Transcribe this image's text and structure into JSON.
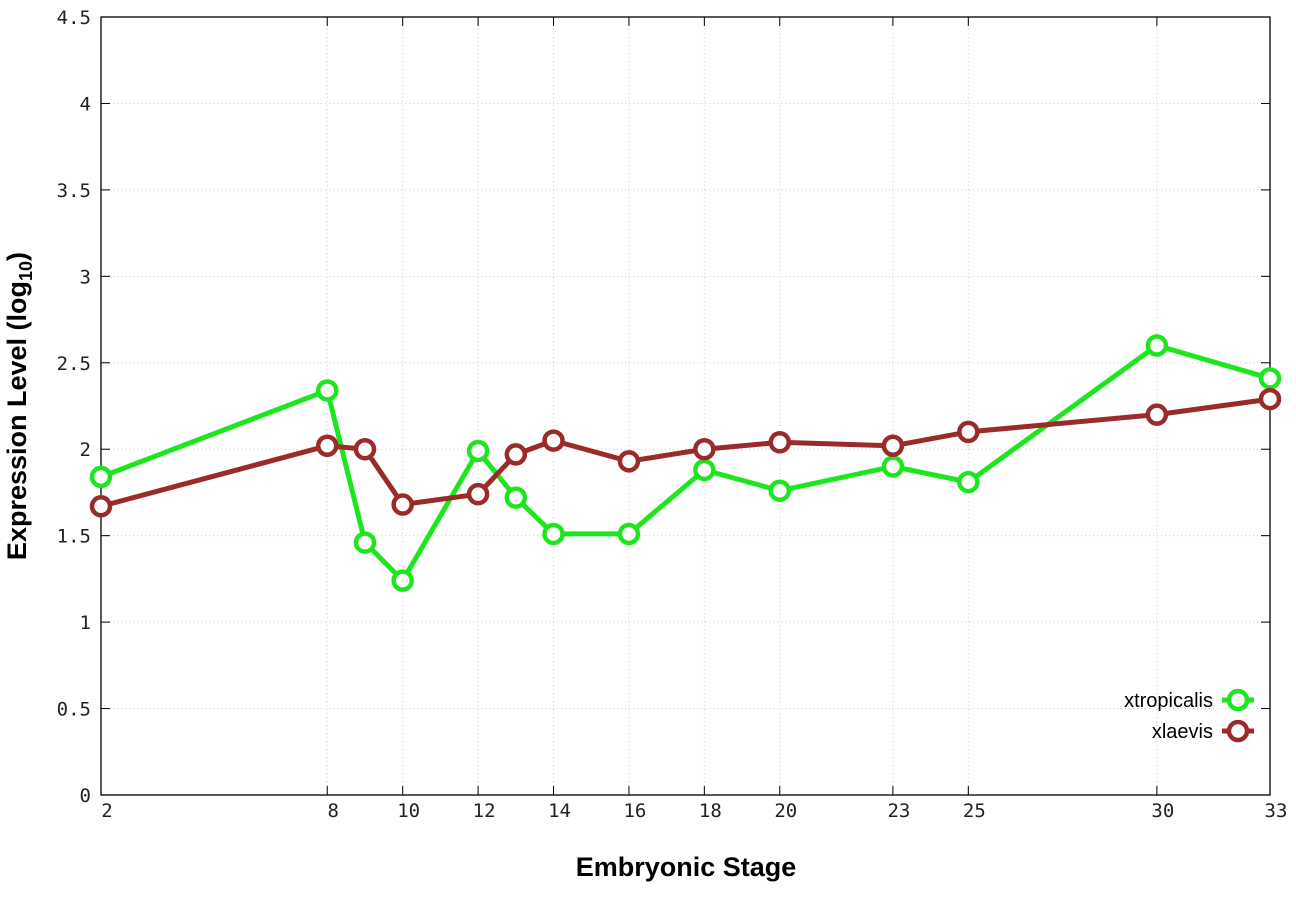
{
  "chart_data": {
    "type": "line",
    "xlabel": "Embryonic Stage",
    "ylabel_main": "Expression Level (log",
    "ylabel_sub": "10",
    "ylabel_close": ")",
    "ylim": [
      0,
      4.5
    ],
    "y_ticks": [
      "0",
      "0.5",
      "1",
      "1.5",
      "2",
      "2.5",
      "3",
      "3.5",
      "4",
      "4.5"
    ],
    "x_ticks": [
      "2",
      "8",
      "10",
      "12",
      "14",
      "16",
      "18",
      "20",
      "23",
      "25",
      "30",
      "33"
    ],
    "grid": true,
    "legend_position": "bottom-right",
    "series": [
      {
        "name": "xtropicalis",
        "color": "#1ee61e",
        "values": [
          1.84,
          2.34,
          1.46,
          1.24,
          1.99,
          1.72,
          1.51,
          1.51,
          1.88,
          1.76,
          1.9,
          1.81,
          2.6,
          2.41
        ],
        "x": [
          "2",
          "8",
          "9",
          "10",
          "12",
          "13",
          "14",
          "16",
          "18",
          "20",
          "23",
          "25",
          "30",
          "33"
        ]
      },
      {
        "name": "xlaevis",
        "color": "#9b2a2a",
        "values": [
          1.67,
          2.02,
          2.0,
          1.68,
          1.74,
          1.97,
          2.05,
          1.93,
          2.0,
          2.04,
          2.02,
          2.1,
          2.2,
          2.29
        ],
        "x": [
          "2",
          "8",
          "9",
          "10",
          "12",
          "13",
          "14",
          "16",
          "18",
          "20",
          "23",
          "25",
          "30",
          "33"
        ]
      }
    ]
  }
}
